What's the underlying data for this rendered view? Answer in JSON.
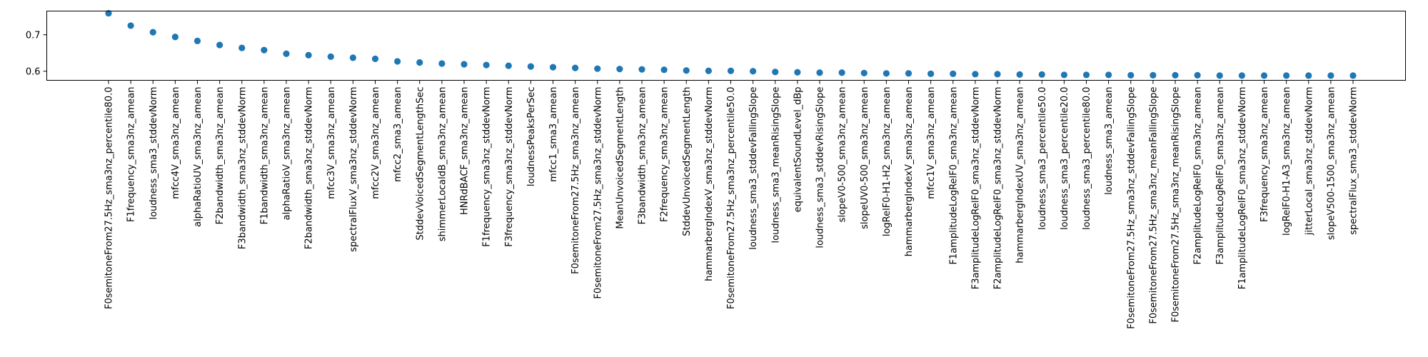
{
  "chart_data": {
    "type": "scatter",
    "title": "",
    "xlabel": "",
    "ylabel": "",
    "ylim": [
      0.575,
      0.765
    ],
    "yticks": [
      0.6,
      0.7
    ],
    "ytick_labels": [
      "0.6",
      "0.7"
    ],
    "grid": false,
    "legend": "none",
    "series_color": "#1f77b4",
    "categories": [
      "F0semitoneFrom27.5Hz_sma3nz_percentile80.0",
      "F1frequency_sma3nz_amean",
      "loudness_sma3_stddevNorm",
      "mfcc4V_sma3nz_amean",
      "alphaRatioUV_sma3nz_amean",
      "F2bandwidth_sma3nz_amean",
      "F3bandwidth_sma3nz_stddevNorm",
      "F1bandwidth_sma3nz_amean",
      "alphaRatioV_sma3nz_amean",
      "F2bandwidth_sma3nz_stddevNorm",
      "mfcc3V_sma3nz_amean",
      "spectralFluxV_sma3nz_stddevNorm",
      "mfcc2V_sma3nz_amean",
      "mfcc2_sma3_amean",
      "StddevVoicedSegmentLengthSec",
      "shimmerLocaldB_sma3nz_amean",
      "HNRdBACF_sma3nz_amean",
      "F1frequency_sma3nz_stddevNorm",
      "F3frequency_sma3nz_stddevNorm",
      "loudnessPeaksPerSec",
      "mfcc1_sma3_amean",
      "F0semitoneFrom27.5Hz_sma3nz_amean",
      "F0semitoneFrom27.5Hz_sma3nz_stddevNorm",
      "MeanUnvoicedSegmentLength",
      "F3bandwidth_sma3nz_amean",
      "F2frequency_sma3nz_amean",
      "StddevUnvoicedSegmentLength",
      "hammarbergIndexV_sma3nz_stddevNorm",
      "F0semitoneFrom27.5Hz_sma3nz_percentile50.0",
      "loudness_sma3_stddevFallingSlope",
      "loudness_sma3_meanRisingSlope",
      "equivalentSoundLevel_dBp",
      "loudness_sma3_stddevRisingSlope",
      "slopeV0-500_sma3nz_amean",
      "slopeUV0-500_sma3nz_amean",
      "logRelF0-H1-H2_sma3nz_amean",
      "hammarbergIndexV_sma3nz_amean",
      "mfcc1V_sma3nz_amean",
      "F1amplitudeLogRelF0_sma3nz_amean",
      "F3amplitudeLogRelF0_sma3nz_stddevNorm",
      "F2amplitudeLogRelF0_sma3nz_stddevNorm",
      "hammarbergIndexUV_sma3nz_amean",
      "loudness_sma3_percentile50.0",
      "loudness_sma3_percentile20.0",
      "loudness_sma3_percentile80.0",
      "loudness_sma3_amean",
      "F0semitoneFrom27.5Hz_sma3nz_stddevFallingSlope",
      "F0semitoneFrom27.5Hz_sma3nz_meanFallingSlope",
      "F0semitoneFrom27.5Hz_sma3nz_meanRisingSlope",
      "F2amplitudeLogRelF0_sma3nz_amean",
      "F3amplitudeLogRelF0_sma3nz_amean",
      "F1amplitudeLogRelF0_sma3nz_stddevNorm",
      "F3frequency_sma3nz_amean",
      "logRelF0-H1-A3_sma3nz_amean",
      "jitterLocal_sma3nz_stddevNorm",
      "slopeV500-1500_sma3nz_amean",
      "spectralFlux_sma3_stddevNorm"
    ],
    "values": [
      0.759,
      0.725,
      0.707,
      0.694,
      0.683,
      0.672,
      0.664,
      0.658,
      0.648,
      0.644,
      0.64,
      0.637,
      0.634,
      0.627,
      0.624,
      0.621,
      0.619,
      0.617,
      0.615,
      0.613,
      0.611,
      0.609,
      0.607,
      0.606,
      0.605,
      0.604,
      0.602,
      0.601,
      0.601,
      0.6,
      0.598,
      0.597,
      0.596,
      0.596,
      0.595,
      0.594,
      0.594,
      0.593,
      0.593,
      0.592,
      0.592,
      0.591,
      0.591,
      0.59,
      0.59,
      0.59,
      0.589,
      0.589,
      0.589,
      0.589,
      0.588,
      0.588,
      0.588,
      0.588,
      0.588,
      0.588,
      0.588
    ]
  }
}
